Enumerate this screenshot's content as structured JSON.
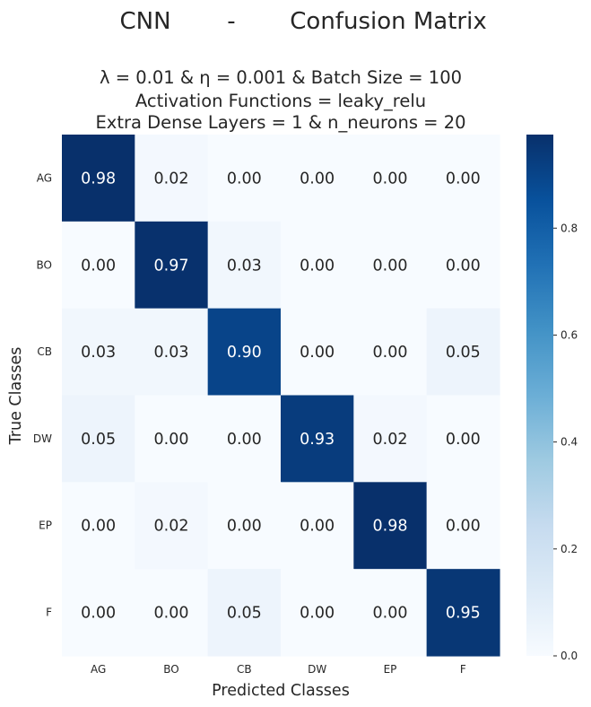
{
  "chart_data": {
    "type": "heatmap",
    "suptitle": {
      "parts": [
        "CNN",
        "-",
        "Confusion Matrix"
      ]
    },
    "subtitle_lines": [
      "λ = 0.01  &  η = 0.001   &   Batch Size = 100",
      "Activation Functions = leaky_relu",
      "Extra Dense Layers = 1   &   n_neurons = 20"
    ],
    "xlabel": "Predicted Classes",
    "ylabel": "True Classes",
    "x_categories": [
      "AG",
      "BO",
      "CB",
      "DW",
      "EP",
      "F"
    ],
    "y_categories": [
      "AG",
      "BO",
      "CB",
      "DW",
      "EP",
      "F"
    ],
    "values": [
      [
        0.98,
        0.02,
        0.0,
        0.0,
        0.0,
        0.0
      ],
      [
        0.0,
        0.97,
        0.03,
        0.0,
        0.0,
        0.0
      ],
      [
        0.03,
        0.03,
        0.9,
        0.0,
        0.0,
        0.05
      ],
      [
        0.05,
        0.0,
        0.0,
        0.93,
        0.02,
        0.0
      ],
      [
        0.0,
        0.02,
        0.0,
        0.0,
        0.98,
        0.0
      ],
      [
        0.0,
        0.0,
        0.05,
        0.0,
        0.0,
        0.95
      ]
    ],
    "colormap": "Blues",
    "colorbar": {
      "range": [
        0.0,
        0.975
      ],
      "ticks": [
        "0.0",
        "0.2",
        "0.4",
        "0.6",
        "0.8"
      ]
    },
    "colors": {
      "low": "#f7fbff",
      "high": "#08306b",
      "text_dark": "#262626",
      "text_light": "#ffffff"
    }
  }
}
